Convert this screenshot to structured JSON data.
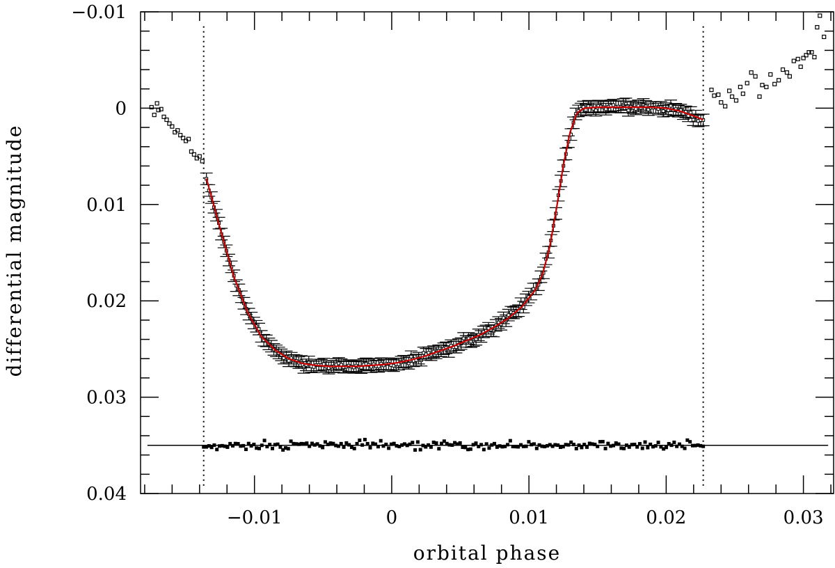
{
  "chart_data": {
    "type": "scatter",
    "title": "",
    "xlabel": "orbital phase",
    "ylabel": "differential magnitude",
    "xlim": [
      -0.0183,
      0.0322
    ],
    "ylim": [
      -0.01,
      0.04
    ],
    "y_inverted": true,
    "grid": false,
    "x_ticks": [
      {
        "value": -0.01,
        "label": "−0.01"
      },
      {
        "value": 0,
        "label": "0"
      },
      {
        "value": 0.01,
        "label": "0.01"
      },
      {
        "value": 0.02,
        "label": "0.02"
      },
      {
        "value": 0.03,
        "label": "0.03"
      }
    ],
    "y_ticks": [
      {
        "value": -0.01,
        "label": "−0.01"
      },
      {
        "value": 0,
        "label": "0"
      },
      {
        "value": 0.01,
        "label": "0.01"
      },
      {
        "value": 0.02,
        "label": "0.02"
      },
      {
        "value": 0.03,
        "label": "0.03"
      },
      {
        "value": 0.04,
        "label": "0.04"
      }
    ],
    "contact_phases": [
      -0.0137,
      0.0227
    ],
    "residual_offset": 0.035,
    "colors": {
      "data": "#000000",
      "model": "#cc0000",
      "axes": "#000000"
    },
    "series": [
      {
        "kind": "out_of_transit_points",
        "style": "open-square",
        "x": [
          -0.0175,
          -0.0173,
          -0.0171,
          -0.017,
          -0.0168,
          -0.0166,
          -0.0164,
          -0.0162,
          -0.016,
          -0.0158,
          -0.0156,
          -0.0154,
          -0.0152,
          -0.015,
          -0.0148,
          -0.0146,
          -0.0144,
          -0.0142,
          -0.014,
          -0.0138,
          0.0233,
          0.0235,
          0.0238,
          0.024,
          0.0243,
          0.0246,
          0.0248,
          0.0251,
          0.0254,
          0.0256,
          0.0259,
          0.0262,
          0.0265,
          0.0268,
          0.027,
          0.0273,
          0.0276,
          0.0279,
          0.0282,
          0.0285,
          0.0288,
          0.029,
          0.0293,
          0.0296,
          0.0298,
          0.03,
          0.0302,
          0.0304,
          0.0306,
          0.0308,
          0.031,
          0.0312,
          0.0315
        ],
        "y": [
          -0.0001,
          0.0007,
          -0.0005,
          0.0002,
          0.0001,
          0.0009,
          0.0012,
          0.0016,
          0.0019,
          0.0025,
          0.0023,
          0.0028,
          0.0031,
          0.0034,
          0.0032,
          0.0045,
          0.0048,
          0.0052,
          0.005,
          0.0055,
          -0.0019,
          -0.0013,
          -0.0014,
          -0.0006,
          -0.0002,
          -0.0018,
          -0.0012,
          -0.0008,
          -0.0022,
          -0.0015,
          -0.0026,
          -0.0037,
          -0.0033,
          -0.0012,
          -0.0024,
          -0.0022,
          -0.0035,
          -0.0025,
          -0.0029,
          -0.004,
          -0.0037,
          -0.0033,
          -0.0049,
          -0.0051,
          -0.0043,
          -0.0052,
          -0.0055,
          -0.0058,
          -0.0058,
          -0.0053,
          -0.0084,
          -0.0096,
          -0.0074
        ]
      },
      {
        "kind": "in_transit_points",
        "style": "open-square with error bars",
        "error": 0.0006,
        "model_x": [
          -0.0135,
          -0.0125,
          -0.0115,
          -0.0105,
          -0.0095,
          -0.0085,
          -0.0075,
          -0.0065,
          -0.0055,
          -0.0045,
          -0.0035,
          -0.0025,
          -0.0015,
          -0.0005,
          0.0005,
          0.0015,
          0.0025,
          0.0035,
          0.0045,
          0.0055,
          0.0065,
          0.0075,
          0.0085,
          0.0095,
          0.0105,
          0.011,
          0.0115,
          0.012,
          0.0125,
          0.013,
          0.0135,
          0.014,
          0.015,
          0.016,
          0.017,
          0.018,
          0.019,
          0.02,
          0.021,
          0.022,
          0.0227
        ],
        "model_y": [
          0.0073,
          0.0125,
          0.0175,
          0.0212,
          0.0237,
          0.0251,
          0.026,
          0.0265,
          0.0267,
          0.0268,
          0.0268,
          0.0268,
          0.0267,
          0.0266,
          0.0264,
          0.0261,
          0.0257,
          0.0252,
          0.0247,
          0.0241,
          0.0235,
          0.0227,
          0.0218,
          0.0206,
          0.0188,
          0.0172,
          0.0145,
          0.0105,
          0.006,
          0.0025,
          0.0005,
          0.0,
          -0.0001,
          -0.0001,
          -0.0001,
          -0.0001,
          -0.0001,
          0.0,
          0.0003,
          0.0008,
          0.0012
        ]
      },
      {
        "kind": "residuals",
        "style": "filled-square",
        "x_start": -0.0137,
        "x_end": 0.0227,
        "count": 190,
        "scatter": 0.0003
      }
    ]
  }
}
